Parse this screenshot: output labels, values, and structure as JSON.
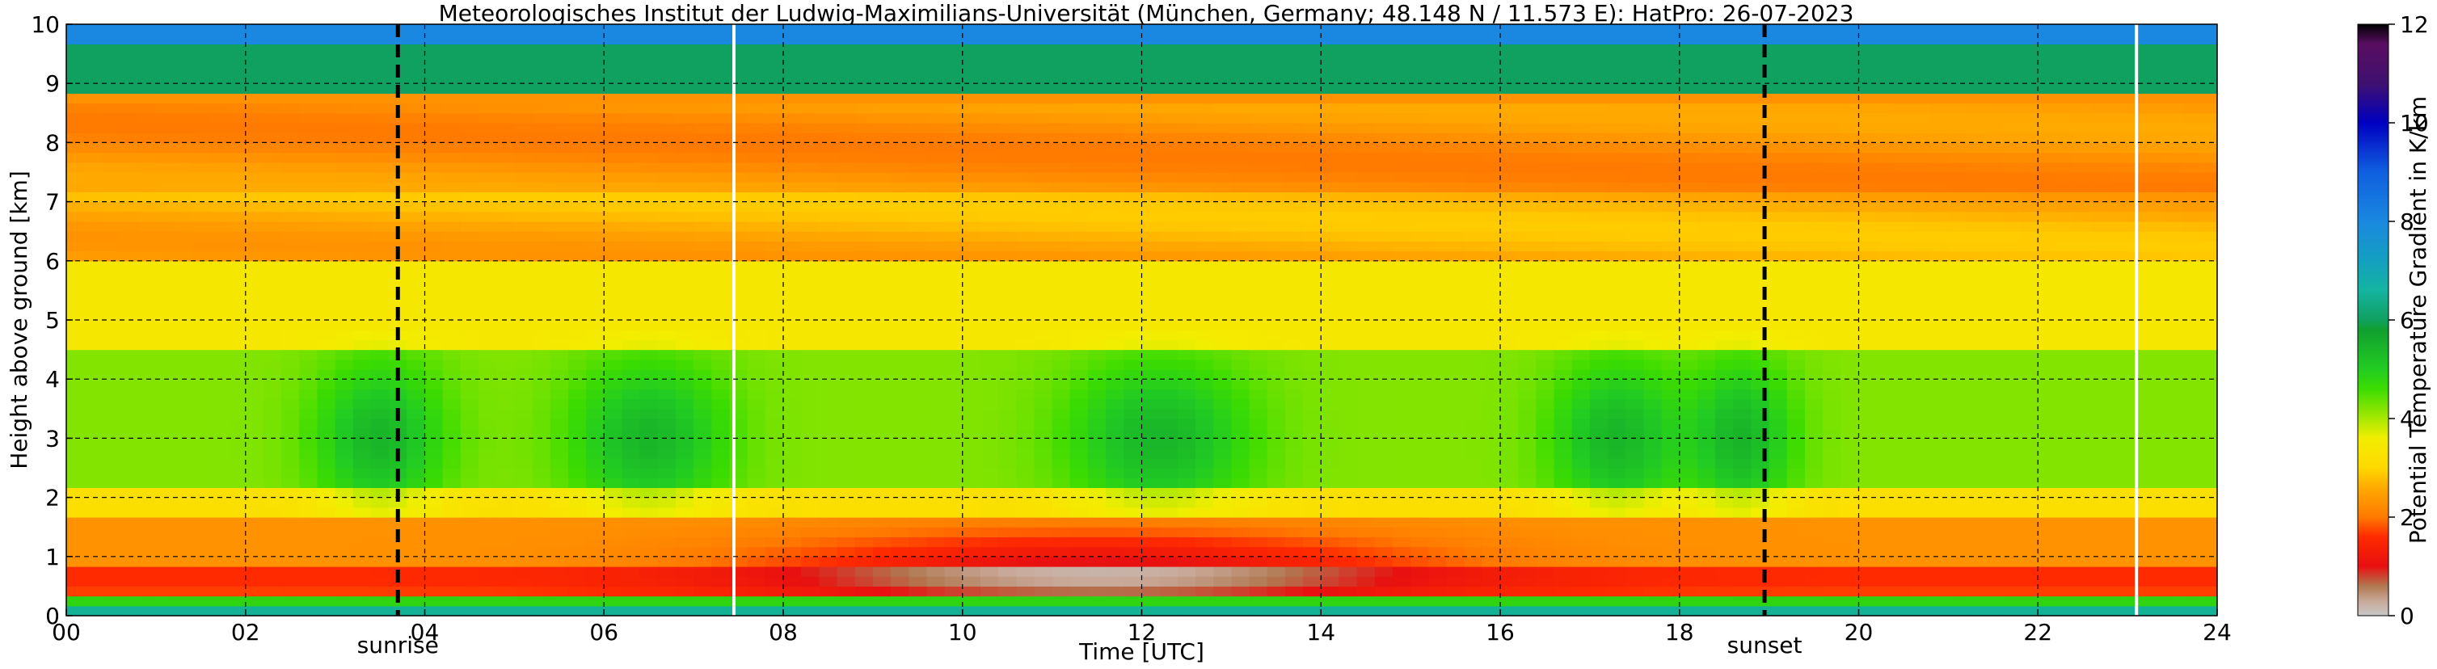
{
  "chart_data": {
    "type": "heatmap",
    "title": "Meteorologisches Institut der Ludwig-Maximilians-Universität (München, Germany; 48.148 N / 11.573 E):    HatPro: 26-07-2023",
    "xlabel": "Time [UTC]",
    "ylabel": "Height above ground [km]",
    "xlim": [
      0,
      24
    ],
    "ylim": [
      0,
      10
    ],
    "x_ticks": [
      0,
      2,
      4,
      6,
      8,
      10,
      12,
      14,
      16,
      18,
      20,
      22,
      24
    ],
    "x_tick_labels": [
      "00",
      "02",
      "04",
      "06",
      "08",
      "10",
      "12",
      "14",
      "16",
      "18",
      "20",
      "22",
      "24"
    ],
    "y_ticks": [
      0,
      1,
      2,
      3,
      4,
      5,
      6,
      7,
      8,
      9,
      10
    ],
    "y_tick_labels": [
      "0",
      "1",
      "2",
      "3",
      "4",
      "5",
      "6",
      "7",
      "8",
      "9",
      "10"
    ],
    "grid": true,
    "colorbar": {
      "label": "Potential Temperature Gradient in K/km",
      "min": 0,
      "max": 12,
      "ticks": [
        0,
        2,
        4,
        6,
        8,
        10,
        12
      ],
      "tick_labels": [
        "0",
        "2",
        "4",
        "6",
        "8",
        "10",
        "12"
      ],
      "stops": [
        [
          0.0,
          "#c8c8c8"
        ],
        [
          0.3,
          "#c8a898"
        ],
        [
          0.6,
          "#b07850"
        ],
        [
          1.0,
          "#e81010"
        ],
        [
          1.6,
          "#ff2a00"
        ],
        [
          2.0,
          "#ff7a00"
        ],
        [
          2.6,
          "#ffaa00"
        ],
        [
          3.0,
          "#ffd800"
        ],
        [
          3.6,
          "#f2ee00"
        ],
        [
          4.0,
          "#a6e800"
        ],
        [
          4.6,
          "#3cdc00"
        ],
        [
          5.0,
          "#22cc22"
        ],
        [
          5.8,
          "#10a030"
        ],
        [
          6.0,
          "#10a060"
        ],
        [
          6.6,
          "#14b4a0"
        ],
        [
          7.2,
          "#14a0c0"
        ],
        [
          8.0,
          "#1a88e0"
        ],
        [
          9.0,
          "#1060e0"
        ],
        [
          10.0,
          "#0000c0"
        ],
        [
          10.8,
          "#401070"
        ],
        [
          11.6,
          "#580e60"
        ],
        [
          12.0,
          "#000000"
        ]
      ]
    },
    "sunrise": {
      "time": 3.7,
      "label": "sunrise"
    },
    "sunset": {
      "time": 18.95,
      "label": "sunset"
    },
    "missing_data_times": [
      7.45,
      23.1
    ],
    "field": {
      "description": "potential temperature gradient (K/km) vs time and height",
      "height_bands": [
        {
          "top": 0.1,
          "value": 6.5
        },
        {
          "top": 0.3,
          "value": 4.8
        },
        {
          "top": 0.5,
          "value": 1.7
        },
        {
          "top": 0.8,
          "value": 1.6
        },
        {
          "top": 1.6,
          "value": 2.3
        },
        {
          "top": 2.2,
          "value": 3.2
        },
        {
          "top": 4.5,
          "value": 4.2
        },
        {
          "top": 6.0,
          "value": 3.4
        },
        {
          "top": 7.2,
          "value": 2.6
        },
        {
          "top": 8.8,
          "value": 2.3
        },
        {
          "top": 9.6,
          "value": 6.0
        },
        {
          "top": 10.0,
          "value": 8.0
        }
      ]
    }
  }
}
